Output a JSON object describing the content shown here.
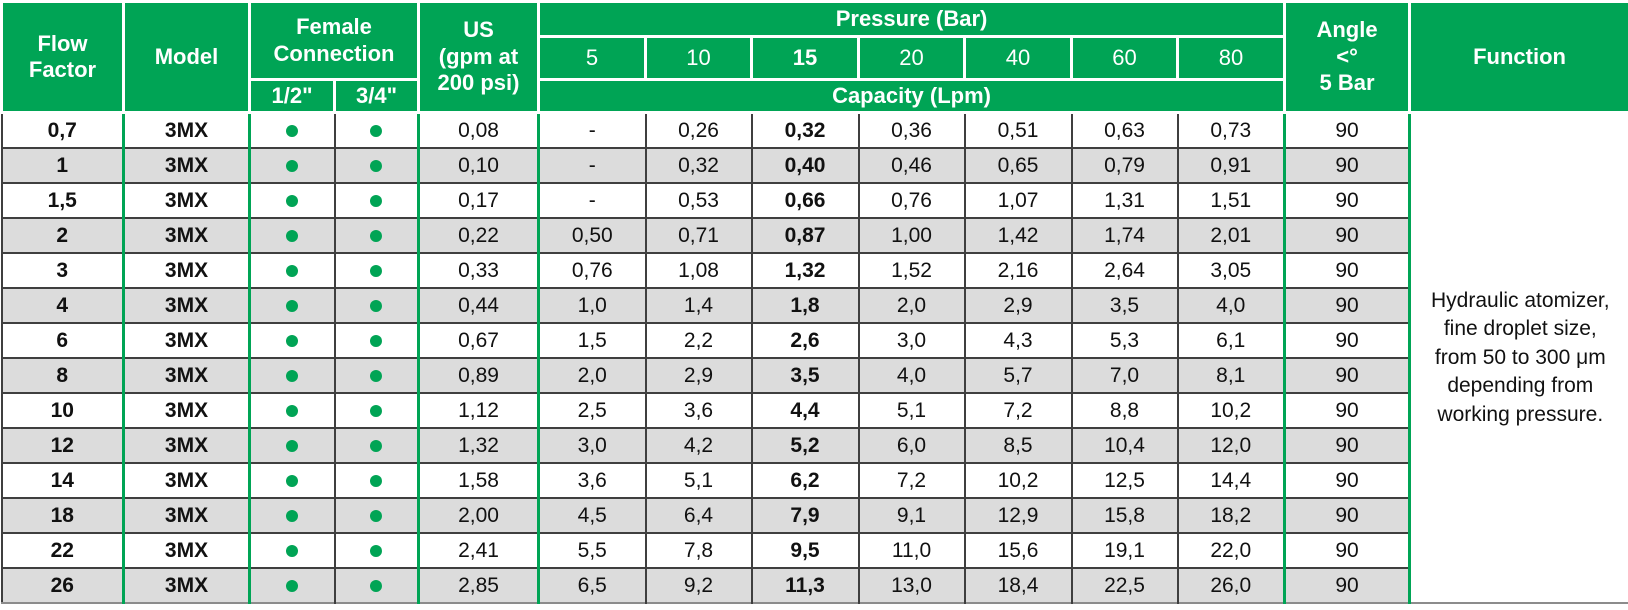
{
  "colors": {
    "green": "#00a455",
    "row_alt": "#dcdcdc",
    "line_dark": "#3f3f3f"
  },
  "table": {
    "header": {
      "flow_factor": "Flow\nFactor",
      "model": "Model",
      "female_connection": "Female\nConnection",
      "conn_half": "1/2\"",
      "conn_threequarter": "3/4\"",
      "us": "US\n(gpm at\n200 psi)",
      "pressure": "Pressure (Bar)",
      "pressure_values": [
        "5",
        "10",
        "15",
        "20",
        "40",
        "60",
        "80"
      ],
      "capacity": "Capacity (Lpm)",
      "angle": "Angle\n<°\n5 Bar",
      "function": "Function"
    },
    "function_text": "Hydraulic atomizer, fine droplet size, from 50 to 300 μm depending from working pressure.",
    "rows": [
      {
        "flow_factor": "0,7",
        "model": "3MX",
        "conn_half": true,
        "conn_threequarter": true,
        "us_gpm": "0,08",
        "pressures": [
          "-",
          "0,26",
          "0,32",
          "0,36",
          "0,51",
          "0,63",
          "0,73"
        ],
        "angle": "90"
      },
      {
        "flow_factor": "1",
        "model": "3MX",
        "conn_half": true,
        "conn_threequarter": true,
        "us_gpm": "0,10",
        "pressures": [
          "-",
          "0,32",
          "0,40",
          "0,46",
          "0,65",
          "0,79",
          "0,91"
        ],
        "angle": "90"
      },
      {
        "flow_factor": "1,5",
        "model": "3MX",
        "conn_half": true,
        "conn_threequarter": true,
        "us_gpm": "0,17",
        "pressures": [
          "-",
          "0,53",
          "0,66",
          "0,76",
          "1,07",
          "1,31",
          "1,51"
        ],
        "angle": "90"
      },
      {
        "flow_factor": "2",
        "model": "3MX",
        "conn_half": true,
        "conn_threequarter": true,
        "us_gpm": "0,22",
        "pressures": [
          "0,50",
          "0,71",
          "0,87",
          "1,00",
          "1,42",
          "1,74",
          "2,01"
        ],
        "angle": "90"
      },
      {
        "flow_factor": "3",
        "model": "3MX",
        "conn_half": true,
        "conn_threequarter": true,
        "us_gpm": "0,33",
        "pressures": [
          "0,76",
          "1,08",
          "1,32",
          "1,52",
          "2,16",
          "2,64",
          "3,05"
        ],
        "angle": "90"
      },
      {
        "flow_factor": "4",
        "model": "3MX",
        "conn_half": true,
        "conn_threequarter": true,
        "us_gpm": "0,44",
        "pressures": [
          "1,0",
          "1,4",
          "1,8",
          "2,0",
          "2,9",
          "3,5",
          "4,0"
        ],
        "angle": "90"
      },
      {
        "flow_factor": "6",
        "model": "3MX",
        "conn_half": true,
        "conn_threequarter": true,
        "us_gpm": "0,67",
        "pressures": [
          "1,5",
          "2,2",
          "2,6",
          "3,0",
          "4,3",
          "5,3",
          "6,1"
        ],
        "angle": "90"
      },
      {
        "flow_factor": "8",
        "model": "3MX",
        "conn_half": true,
        "conn_threequarter": true,
        "us_gpm": "0,89",
        "pressures": [
          "2,0",
          "2,9",
          "3,5",
          "4,0",
          "5,7",
          "7,0",
          "8,1"
        ],
        "angle": "90"
      },
      {
        "flow_factor": "10",
        "model": "3MX",
        "conn_half": true,
        "conn_threequarter": true,
        "us_gpm": "1,12",
        "pressures": [
          "2,5",
          "3,6",
          "4,4",
          "5,1",
          "7,2",
          "8,8",
          "10,2"
        ],
        "angle": "90"
      },
      {
        "flow_factor": "12",
        "model": "3MX",
        "conn_half": true,
        "conn_threequarter": true,
        "us_gpm": "1,32",
        "pressures": [
          "3,0",
          "4,2",
          "5,2",
          "6,0",
          "8,5",
          "10,4",
          "12,0"
        ],
        "angle": "90"
      },
      {
        "flow_factor": "14",
        "model": "3MX",
        "conn_half": true,
        "conn_threequarter": true,
        "us_gpm": "1,58",
        "pressures": [
          "3,6",
          "5,1",
          "6,2",
          "7,2",
          "10,2",
          "12,5",
          "14,4"
        ],
        "angle": "90"
      },
      {
        "flow_factor": "18",
        "model": "3MX",
        "conn_half": true,
        "conn_threequarter": true,
        "us_gpm": "2,00",
        "pressures": [
          "4,5",
          "6,4",
          "7,9",
          "9,1",
          "12,9",
          "15,8",
          "18,2"
        ],
        "angle": "90"
      },
      {
        "flow_factor": "22",
        "model": "3MX",
        "conn_half": true,
        "conn_threequarter": true,
        "us_gpm": "2,41",
        "pressures": [
          "5,5",
          "7,8",
          "9,5",
          "11,0",
          "15,6",
          "19,1",
          "22,0"
        ],
        "angle": "90"
      },
      {
        "flow_factor": "26",
        "model": "3MX",
        "conn_half": true,
        "conn_threequarter": true,
        "us_gpm": "2,85",
        "pressures": [
          "6,5",
          "9,2",
          "11,3",
          "13,0",
          "18,4",
          "22,5",
          "26,0"
        ],
        "angle": "90"
      }
    ]
  }
}
